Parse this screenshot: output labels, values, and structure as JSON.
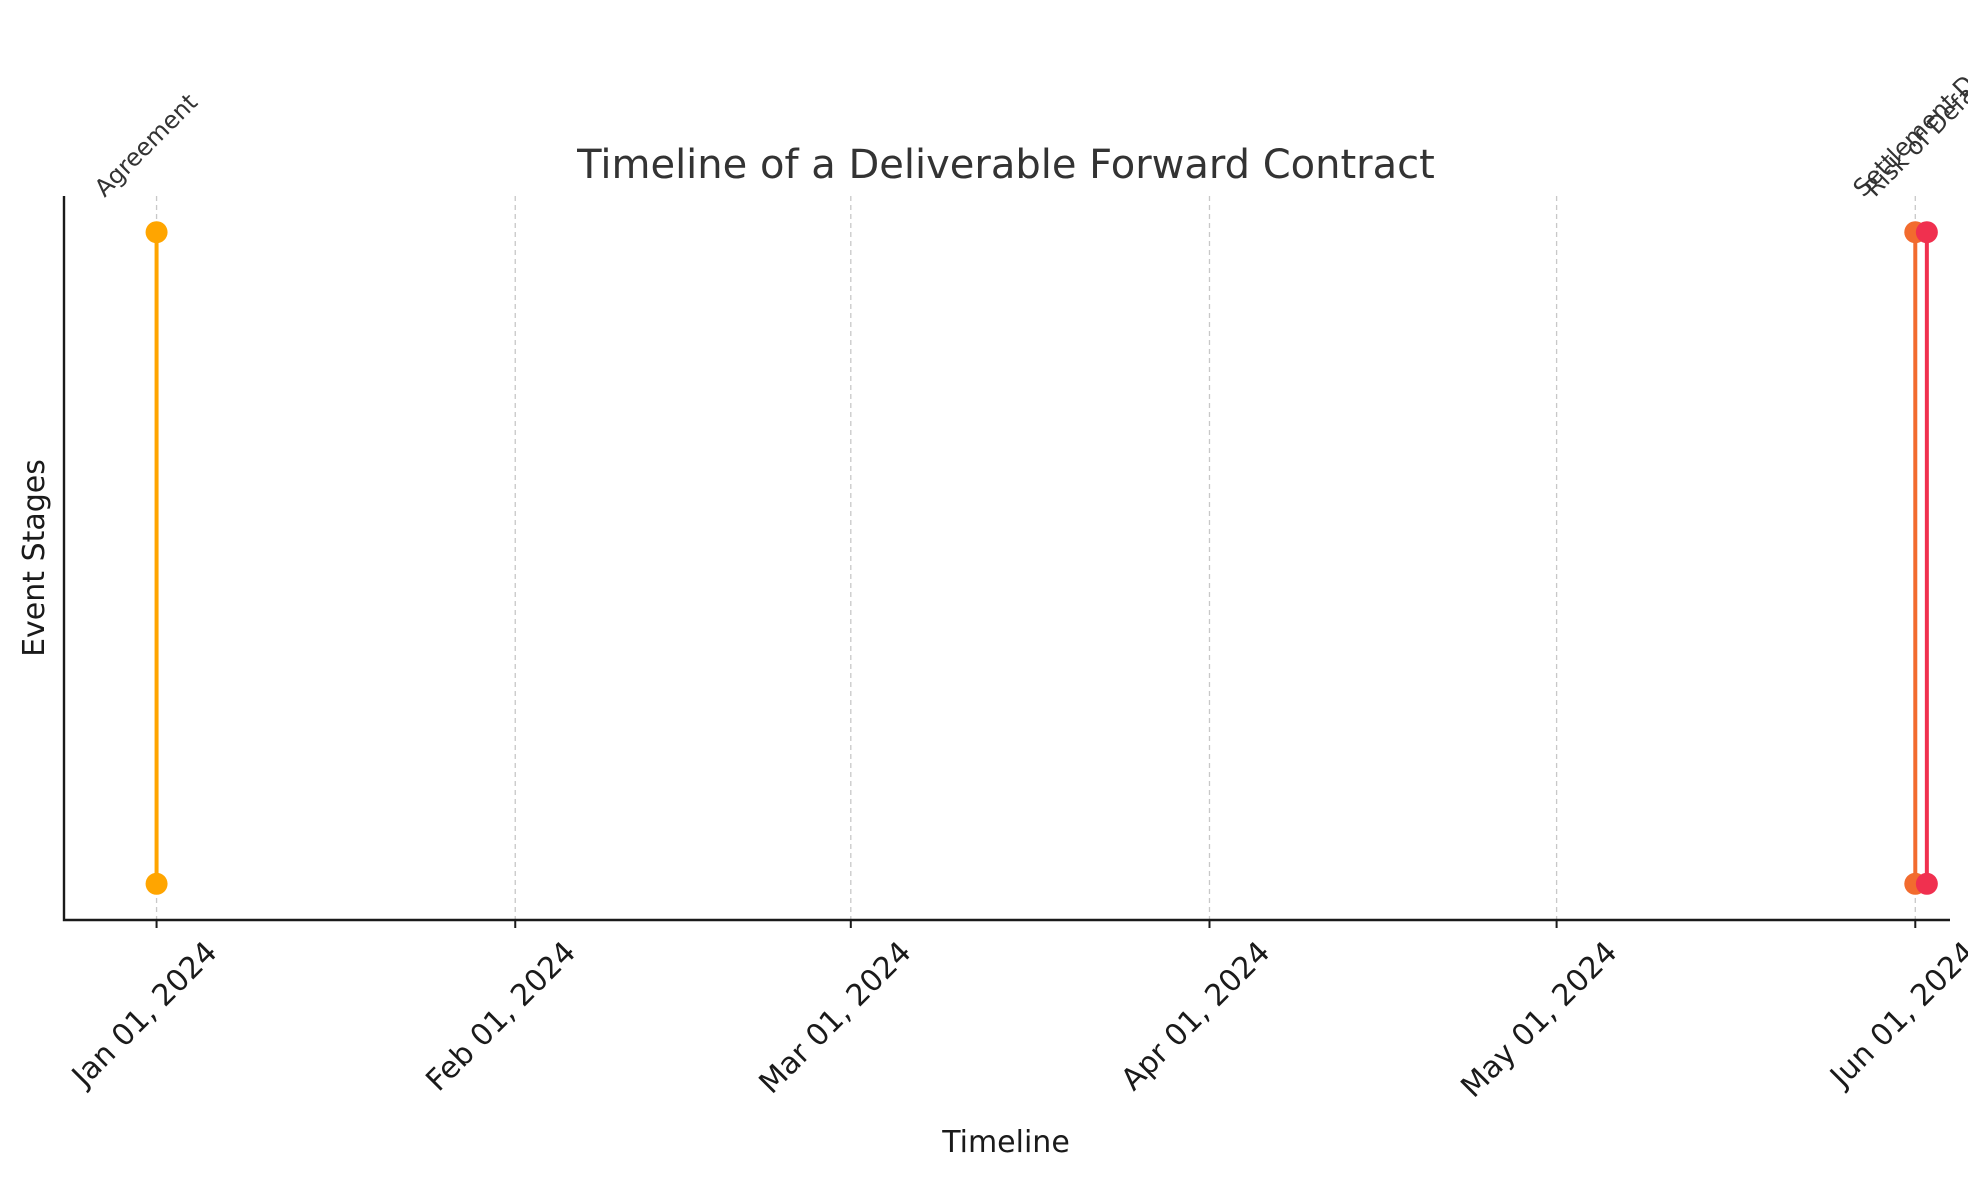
{
  "chart_data": {
    "type": "timeline",
    "title": "Timeline of a Deliverable Forward Contract",
    "xlabel": "Timeline",
    "ylabel": "Event Stages",
    "x_axis_type": "date",
    "xlim": [
      "2023-12-24",
      "2024-06-04"
    ],
    "ylim": [
      0,
      1
    ],
    "grid": {
      "x": true,
      "y": false,
      "style": "dashed"
    },
    "x_ticks": [
      {
        "date": "2024-01-01",
        "label": "Jan 01, 2024"
      },
      {
        "date": "2024-02-01",
        "label": "Feb 01, 2024"
      },
      {
        "date": "2024-03-01",
        "label": "Mar 01, 2024"
      },
      {
        "date": "2024-04-01",
        "label": "Apr 01, 2024"
      },
      {
        "date": "2024-05-01",
        "label": "May 01, 2024"
      },
      {
        "date": "2024-06-01",
        "label": "Jun 01, 2024"
      }
    ],
    "events": [
      {
        "label": "Agreement",
        "date": "2024-01-01",
        "y_start": 0.05,
        "y_end": 0.95,
        "color": "#FFA500"
      },
      {
        "label": "Settlement Date",
        "date": "2024-06-01",
        "y_start": 0.05,
        "y_end": 0.95,
        "color": "#F26B2E"
      },
      {
        "label": "Risk of Default",
        "date": "2024-06-02",
        "y_start": 0.05,
        "y_end": 0.95,
        "color": "#F0304F"
      }
    ]
  }
}
